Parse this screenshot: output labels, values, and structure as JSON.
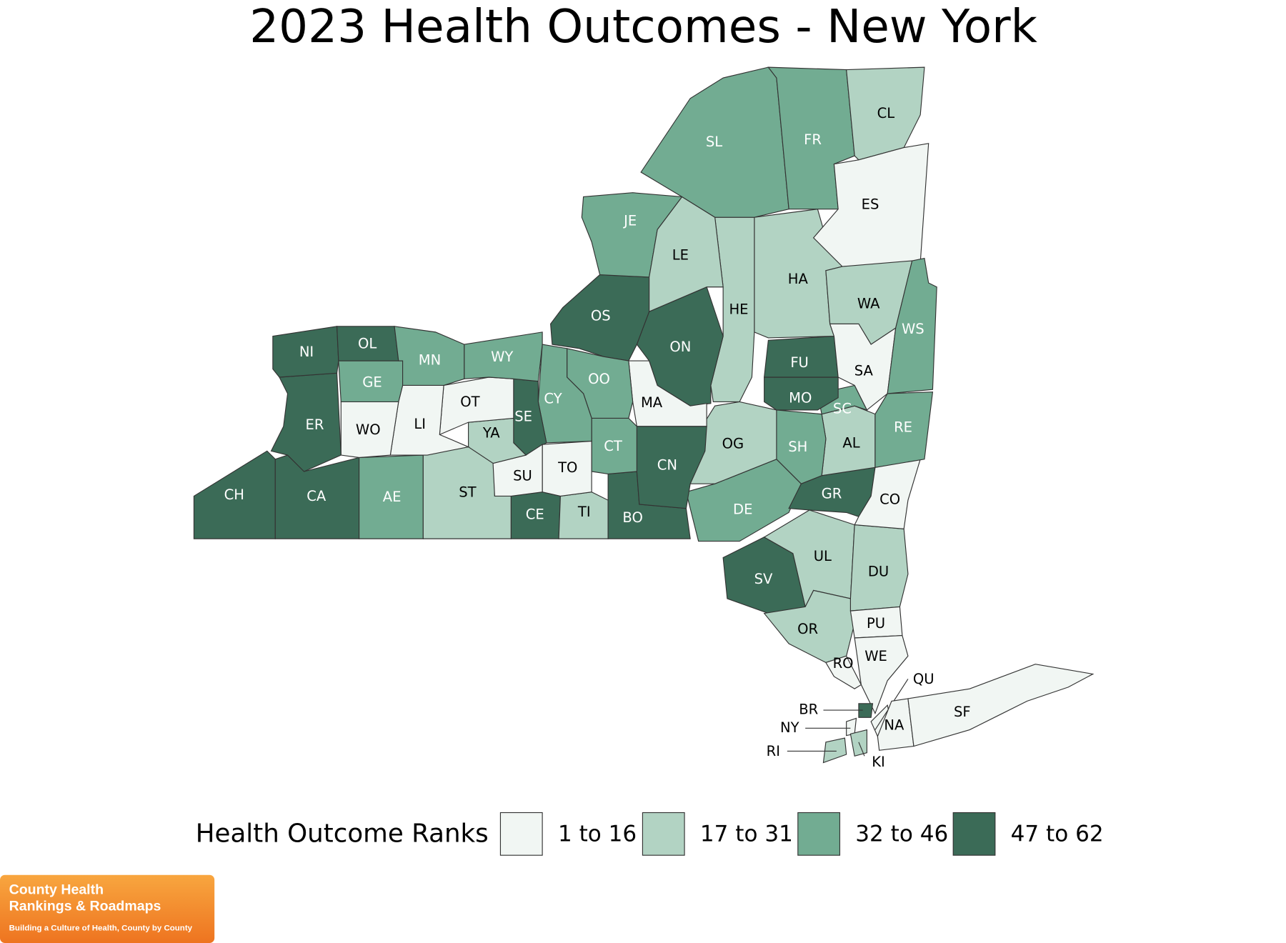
{
  "title": "2023 Health Outcomes - New York",
  "legend": {
    "title": "Health Outcome Ranks",
    "items": [
      {
        "label": "1 to 16",
        "color": "#f1f6f3"
      },
      {
        "label": "17 to 31",
        "color": "#b2d3c3"
      },
      {
        "label": "32 to 46",
        "color": "#72ac92"
      },
      {
        "label": "47 to 62",
        "color": "#3b6b57"
      }
    ]
  },
  "counties": [
    {
      "label": "CH",
      "color": "#3b6b57"
    },
    {
      "label": "CA",
      "color": "#3b6b57"
    },
    {
      "label": "AE",
      "color": "#72ac92"
    },
    {
      "label": "ST",
      "color": "#b2d3c3"
    },
    {
      "label": "CE",
      "color": "#3b6b57"
    },
    {
      "label": "TI",
      "color": "#b2d3c3"
    },
    {
      "label": "BO",
      "color": "#3b6b57"
    },
    {
      "label": "DE",
      "color": "#72ac92"
    },
    {
      "label": "SV",
      "color": "#3b6b57"
    },
    {
      "label": "UL",
      "color": "#b2d3c3"
    },
    {
      "label": "OR",
      "color": "#b2d3c3"
    },
    {
      "label": "DU",
      "color": "#b2d3c3"
    },
    {
      "label": "PU",
      "color": "#f1f6f3"
    },
    {
      "label": "WE",
      "color": "#f1f6f3"
    },
    {
      "label": "RO",
      "color": "#f1f6f3"
    },
    {
      "label": "GR",
      "color": "#3b6b57"
    },
    {
      "label": "CO",
      "color": "#f1f6f3"
    },
    {
      "label": "AL",
      "color": "#b2d3c3"
    },
    {
      "label": "SH",
      "color": "#72ac92"
    },
    {
      "label": "SC",
      "color": "#72ac92"
    },
    {
      "label": "RE",
      "color": "#72ac92"
    },
    {
      "label": "OG",
      "color": "#b2d3c3"
    },
    {
      "label": "MO",
      "color": "#3b6b57"
    },
    {
      "label": "FU",
      "color": "#3b6b57"
    },
    {
      "label": "HA",
      "color": "#b2d3c3"
    },
    {
      "label": "HE",
      "color": "#b2d3c3"
    },
    {
      "label": "ON",
      "color": "#3b6b57"
    },
    {
      "label": "MA",
      "color": "#f1f6f3"
    },
    {
      "label": "OS",
      "color": "#3b6b57"
    },
    {
      "label": "JE",
      "color": "#72ac92"
    },
    {
      "label": "LE",
      "color": "#b2d3c3"
    },
    {
      "label": "SL",
      "color": "#72ac92"
    },
    {
      "label": "FR",
      "color": "#72ac92"
    },
    {
      "label": "CL",
      "color": "#b2d3c3"
    },
    {
      "label": "ES",
      "color": "#f1f6f3"
    },
    {
      "label": "WA",
      "color": "#b2d3c3"
    },
    {
      "label": "SA",
      "color": "#f1f6f3"
    },
    {
      "label": "WS",
      "color": "#72ac92"
    },
    {
      "label": "CN",
      "color": "#3b6b57"
    },
    {
      "label": "CT",
      "color": "#72ac92"
    },
    {
      "label": "OO",
      "color": "#72ac92"
    },
    {
      "label": "CY",
      "color": "#72ac92"
    },
    {
      "label": "SE",
      "color": "#3b6b57"
    },
    {
      "label": "TO",
      "color": "#f1f6f3"
    },
    {
      "label": "SU",
      "color": "#f1f6f3"
    },
    {
      "label": "YA",
      "color": "#b2d3c3"
    },
    {
      "label": "OT",
      "color": "#f1f6f3"
    },
    {
      "label": "LI",
      "color": "#f1f6f3"
    },
    {
      "label": "WO",
      "color": "#f1f6f3"
    },
    {
      "label": "GE",
      "color": "#72ac92"
    },
    {
      "label": "ER",
      "color": "#3b6b57"
    },
    {
      "label": "NI",
      "color": "#3b6b57"
    },
    {
      "label": "OL",
      "color": "#3b6b57"
    },
    {
      "label": "MN",
      "color": "#72ac92"
    },
    {
      "label": "WY",
      "color": "#72ac92"
    },
    {
      "label": "BR",
      "color": "#3b6b57"
    },
    {
      "label": "NY",
      "color": "#f1f6f3"
    },
    {
      "label": "QU",
      "color": "#f1f6f3"
    },
    {
      "label": "KI",
      "color": "#b2d3c3"
    },
    {
      "label": "RI",
      "color": "#b2d3c3"
    },
    {
      "label": "NA",
      "color": "#f1f6f3"
    },
    {
      "label": "SF",
      "color": "#f1f6f3"
    }
  ],
  "logo": {
    "line1": "County Health",
    "line2": "Rankings & Roadmaps",
    "tagline": "Building a Culture of Health, County by County"
  }
}
